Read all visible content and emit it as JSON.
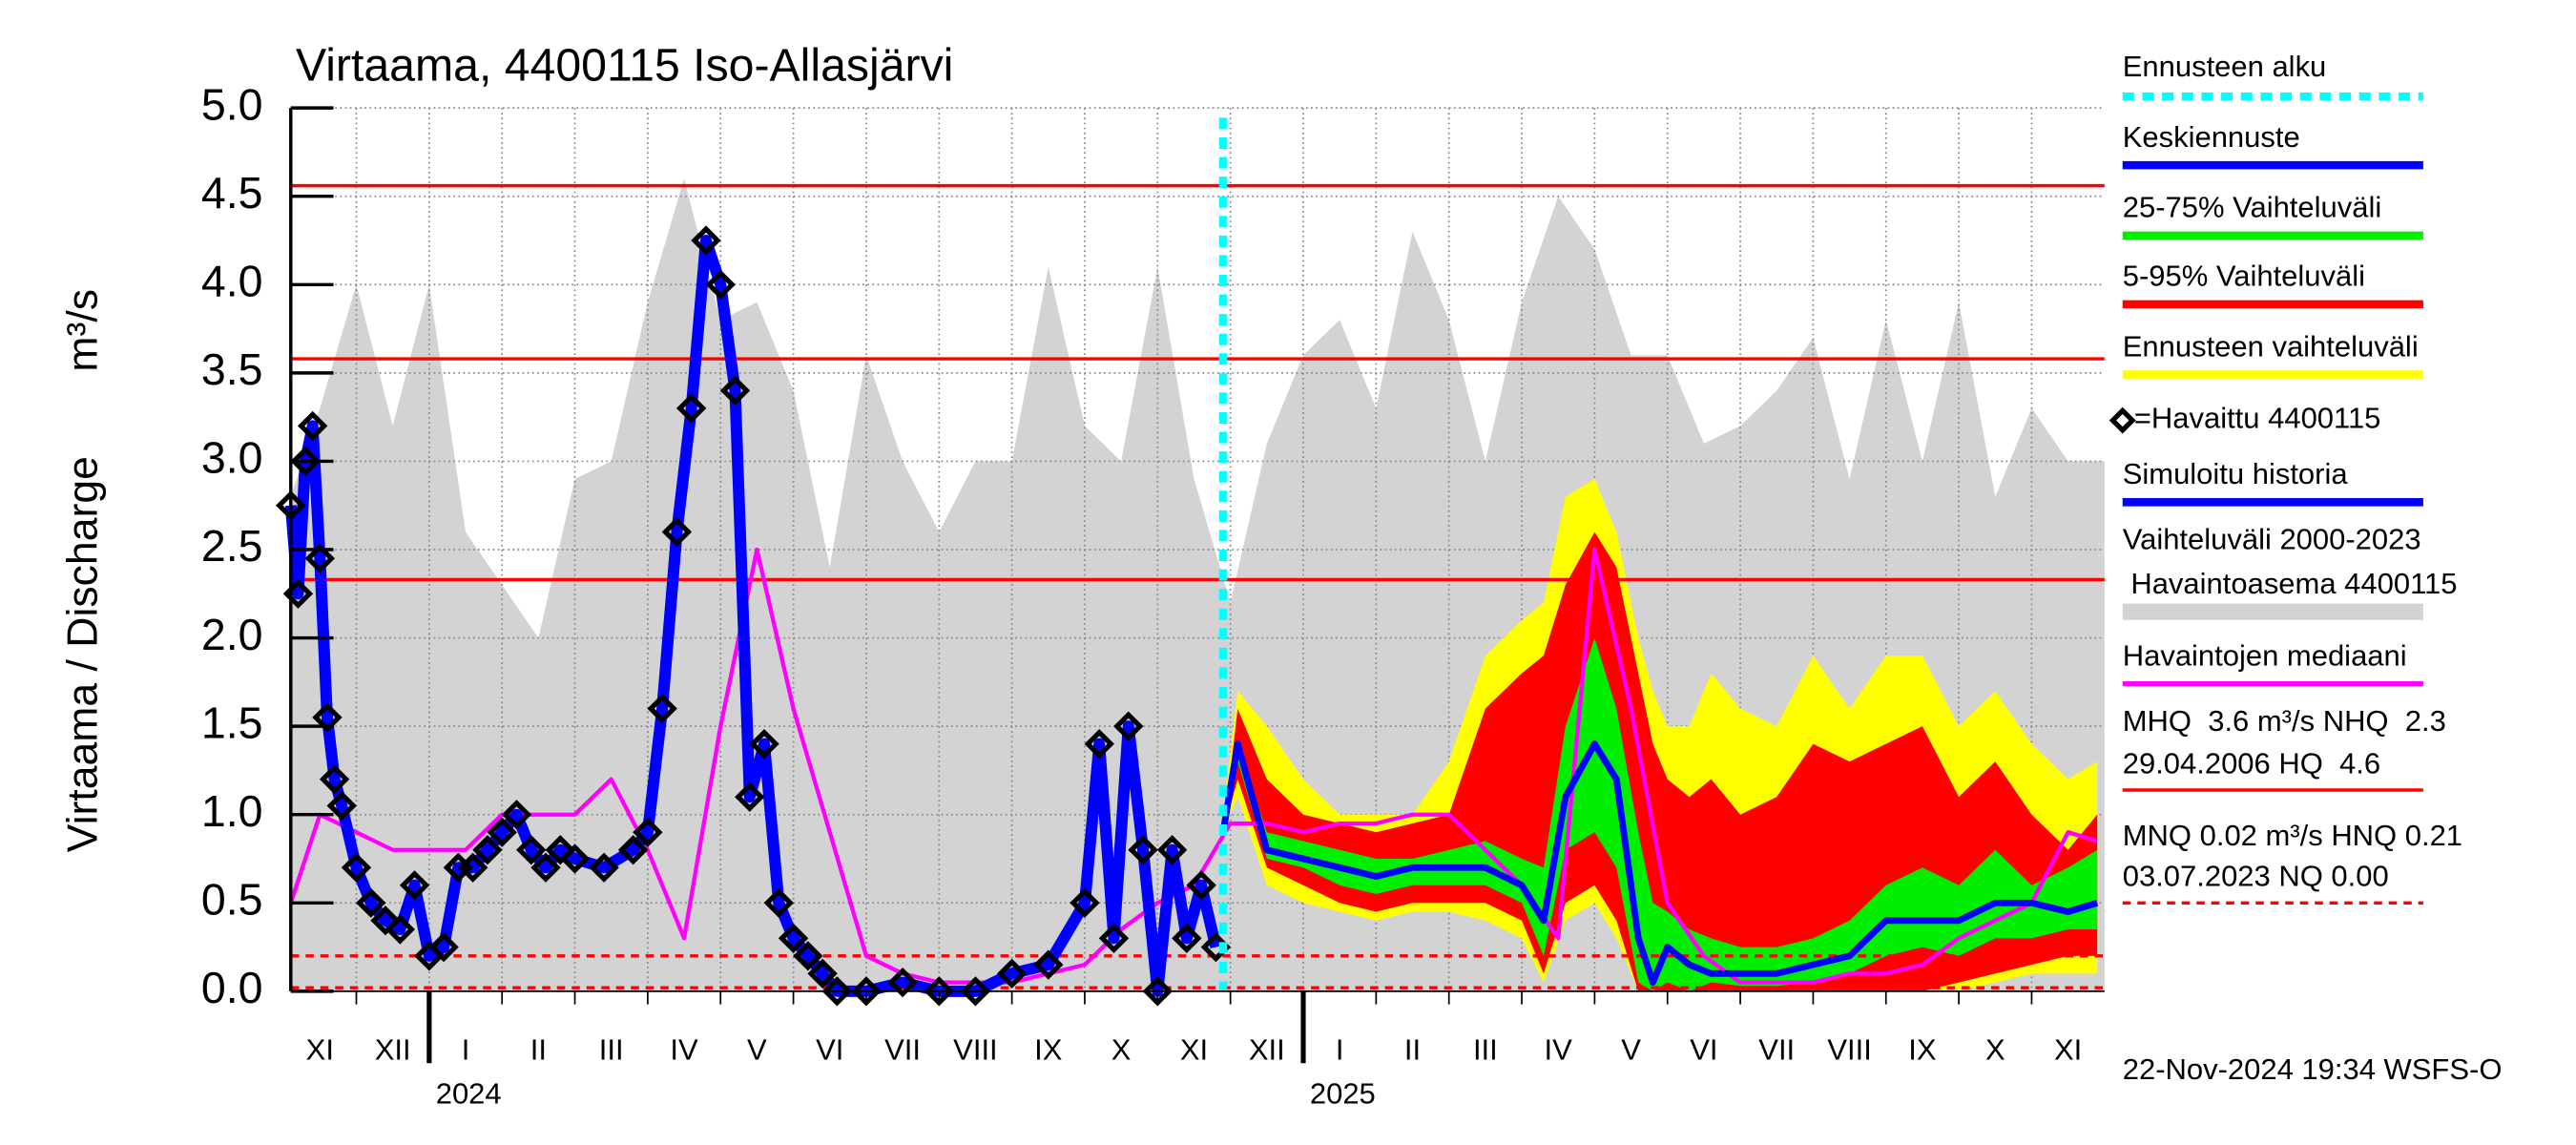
{
  "chart_data": {
    "type": "line",
    "title": "Virtaama, 4400115 Iso-Allasjärvi",
    "y_label": "Virtaama / Discharge",
    "y_unit": "m³/s",
    "ylim": [
      0,
      5
    ],
    "yticks": [
      {
        "value": 0,
        "label": "0.0"
      },
      0.5,
      {
        "value": 1,
        "label": "1.0"
      },
      1.5,
      {
        "value": 2,
        "label": "2.0"
      },
      2.5,
      {
        "value": 3,
        "label": "3.0"
      },
      3.5,
      {
        "value": 4,
        "label": "4.0"
      },
      4.5,
      {
        "value": 5,
        "label": "5.0"
      }
    ],
    "xlim": [
      0.1,
      25
    ],
    "xticks": [
      1,
      2,
      3,
      4,
      5,
      6,
      7,
      8,
      9,
      10,
      11,
      12,
      13,
      14,
      15,
      16,
      17,
      18,
      19,
      20,
      21,
      22,
      23,
      24
    ],
    "categories": [
      "XI",
      "XII",
      "I",
      "II",
      "III",
      "IV",
      "V",
      "VI",
      "VII",
      "VIII",
      "IX",
      "X",
      "XI",
      "XII",
      "I",
      "II",
      "III",
      "IV",
      "V",
      "VI",
      "VII",
      "VIII",
      "IX",
      "X",
      "XI"
    ],
    "year_labels": [
      "2024",
      "2025"
    ],
    "grid": true,
    "forecast_start": {
      "name": "Ennusteen alku",
      "x": 12.9,
      "color": "#00ffff"
    },
    "series": [
      {
        "name": "Vaihteluväli 2000-2023",
        "subname": " Havaintoasema 4400115",
        "kind": "area",
        "color": "#d3d3d3",
        "x": [
          0.1,
          0.5,
          1,
          1.5,
          2,
          2.5,
          3,
          3.5,
          4,
          4.5,
          5,
          5.5,
          6,
          6.5,
          7,
          7.5,
          8,
          8.5,
          9,
          9.5,
          10,
          10.5,
          11,
          11.5,
          12,
          12.5,
          13,
          13.5,
          14,
          14.5,
          15,
          15.5,
          16,
          16.5,
          17,
          17.5,
          18,
          18.5,
          19,
          19.5,
          20,
          20.5,
          21,
          21.5,
          22,
          22.5,
          23,
          23.5,
          24,
          24.5,
          25
        ],
        "values": [
          2.8,
          3.3,
          4.0,
          3.2,
          4.0,
          2.6,
          2.3,
          2.0,
          2.9,
          3.0,
          3.9,
          4.6,
          3.8,
          3.9,
          3.4,
          2.4,
          3.6,
          3.0,
          2.6,
          3.0,
          3.0,
          4.1,
          3.2,
          3.0,
          4.1,
          2.9,
          2.2,
          3.1,
          3.6,
          3.8,
          3.3,
          4.3,
          3.8,
          3.0,
          3.9,
          4.5,
          4.2,
          3.6,
          3.6,
          3.1,
          3.2,
          3.4,
          3.7,
          2.9,
          3.8,
          3.0,
          3.9,
          2.8,
          3.3,
          3.0,
          3.0
        ]
      },
      {
        "name": "Ennusteen vaihteluväli",
        "kind": "band",
        "color": "#ffff00",
        "x": [
          12.9,
          13.1,
          13.5,
          14,
          14.5,
          15,
          15.5,
          16,
          16.5,
          17,
          17.3,
          17.6,
          18,
          18.3,
          18.6,
          18.8,
          19,
          19.3,
          19.6,
          20,
          20.5,
          21,
          21.5,
          22,
          22.5,
          23,
          23.5,
          24,
          24.5,
          24.9
        ],
        "values": [
          1.0,
          1.7,
          1.5,
          1.2,
          1.0,
          1.0,
          1.0,
          1.3,
          1.9,
          2.1,
          2.2,
          2.8,
          2.9,
          2.6,
          2.0,
          1.7,
          1.5,
          1.5,
          1.8,
          1.6,
          1.5,
          1.9,
          1.6,
          1.9,
          1.9,
          1.5,
          1.7,
          1.4,
          1.2,
          1.3
        ],
        "lower": [
          0.9,
          1.1,
          0.6,
          0.5,
          0.45,
          0.4,
          0.45,
          0.45,
          0.4,
          0.3,
          0.05,
          0.4,
          0.5,
          0.3,
          0,
          0,
          0,
          0,
          0,
          0,
          0,
          0,
          0,
          0,
          0,
          0,
          0.05,
          0.1,
          0.1,
          0.1
        ]
      },
      {
        "name": "5-95% Vaihteluväli",
        "kind": "band",
        "color": "#ff0000",
        "x": [
          12.9,
          13.1,
          13.5,
          14,
          14.5,
          15,
          15.5,
          16,
          16.5,
          17,
          17.3,
          17.6,
          18,
          18.3,
          18.6,
          18.8,
          19,
          19.3,
          19.6,
          20,
          20.5,
          21,
          21.5,
          22,
          22.5,
          23,
          23.5,
          24,
          24.5,
          24.9
        ],
        "values": [
          0.9,
          1.6,
          1.2,
          1.0,
          0.95,
          0.9,
          0.95,
          1.0,
          1.6,
          1.8,
          1.9,
          2.3,
          2.6,
          2.4,
          1.8,
          1.4,
          1.2,
          1.1,
          1.2,
          1.0,
          1.1,
          1.4,
          1.3,
          1.4,
          1.5,
          1.1,
          1.3,
          1.0,
          0.8,
          1.0
        ],
        "lower": [
          0.9,
          1.2,
          0.7,
          0.6,
          0.5,
          0.45,
          0.5,
          0.5,
          0.5,
          0.4,
          0.1,
          0.5,
          0.6,
          0.4,
          0,
          0,
          0,
          0,
          0,
          0,
          0,
          0,
          0,
          0,
          0,
          0.05,
          0.1,
          0.15,
          0.2,
          0.2
        ]
      },
      {
        "name": "25-75% Vaihteluväli",
        "kind": "band",
        "color": "#00ee00",
        "x": [
          12.9,
          13.1,
          13.5,
          14,
          14.5,
          15,
          15.5,
          16,
          16.5,
          17,
          17.3,
          17.6,
          18,
          18.3,
          18.6,
          18.8,
          19,
          19.3,
          19.6,
          20,
          20.5,
          21,
          21.5,
          22,
          22.5,
          23,
          23.5,
          24,
          24.5,
          24.9
        ],
        "values": [
          0.9,
          1.4,
          0.9,
          0.85,
          0.8,
          0.75,
          0.75,
          0.8,
          0.85,
          0.75,
          0.7,
          1.5,
          2.0,
          1.6,
          0.9,
          0.5,
          0.45,
          0.35,
          0.3,
          0.25,
          0.25,
          0.3,
          0.4,
          0.6,
          0.7,
          0.6,
          0.8,
          0.6,
          0.7,
          0.8
        ],
        "lower": [
          0.9,
          1.3,
          0.75,
          0.7,
          0.6,
          0.55,
          0.6,
          0.6,
          0.6,
          0.5,
          0.2,
          0.8,
          0.9,
          0.7,
          0.05,
          0,
          0.05,
          0,
          0.05,
          0.03,
          0.03,
          0.05,
          0.1,
          0.2,
          0.25,
          0.2,
          0.3,
          0.3,
          0.35,
          0.35
        ]
      },
      {
        "name": "Keskiennuste",
        "kind": "line",
        "color": "#0000ff",
        "width": 4,
        "x": [
          12.9,
          13.1,
          13.5,
          14,
          14.5,
          15,
          15.5,
          16,
          16.5,
          17,
          17.3,
          17.6,
          18,
          18.3,
          18.6,
          18.8,
          19,
          19.3,
          19.6,
          20,
          20.5,
          21,
          21.5,
          22,
          22.5,
          23,
          23.5,
          24,
          24.5,
          24.9
        ],
        "values": [
          0.9,
          1.4,
          0.8,
          0.75,
          0.7,
          0.65,
          0.7,
          0.7,
          0.7,
          0.6,
          0.4,
          1.1,
          1.4,
          1.2,
          0.3,
          0.05,
          0.25,
          0.15,
          0.1,
          0.1,
          0.1,
          0.15,
          0.2,
          0.4,
          0.4,
          0.4,
          0.5,
          0.5,
          0.45,
          0.5
        ]
      },
      {
        "name": "Havaintojen mediaani",
        "kind": "line",
        "color": "#ff00ff",
        "width": 2.5,
        "x": [
          0.1,
          0.5,
          1,
          1.5,
          2,
          2.5,
          3,
          3.5,
          4,
          4.5,
          5,
          5.5,
          6,
          6.5,
          7,
          7.5,
          8,
          8.5,
          9,
          9.5,
          10,
          10.5,
          11,
          11.5,
          12,
          12.5,
          13,
          13.5,
          14,
          14.5,
          15,
          15.5,
          16,
          16.5,
          17,
          17.5,
          18,
          18.5,
          19,
          19.5,
          20,
          20.5,
          21,
          21.5,
          22,
          22.5,
          23,
          23.5,
          24,
          24.5,
          24.9
        ],
        "values": [
          0.5,
          1.0,
          0.9,
          0.8,
          0.8,
          0.8,
          1.0,
          1.0,
          1.0,
          1.2,
          0.8,
          0.3,
          1.5,
          2.5,
          1.6,
          0.9,
          0.2,
          0.1,
          0.05,
          0.05,
          0.05,
          0.1,
          0.15,
          0.35,
          0.5,
          0.6,
          0.95,
          0.95,
          0.9,
          0.95,
          0.95,
          1.0,
          1.0,
          0.8,
          0.6,
          0.3,
          2.5,
          1.6,
          0.5,
          0.2,
          0.05,
          0.05,
          0.05,
          0.1,
          0.1,
          0.15,
          0.3,
          0.4,
          0.5,
          0.9,
          0.85
        ]
      },
      {
        "name": "Simuloitu historia",
        "kind": "line",
        "color": "#0000ff",
        "width": 7,
        "x": [
          0.1,
          0.2,
          0.3,
          0.4,
          0.5,
          0.6,
          0.7,
          0.8,
          1.0,
          1.2,
          1.4,
          1.6,
          1.8,
          2.0,
          2.2,
          2.4,
          2.6,
          2.8,
          3.0,
          3.2,
          3.4,
          3.6,
          3.8,
          4.0,
          4.4,
          4.8,
          5.0,
          5.2,
          5.4,
          5.6,
          5.8,
          6.0,
          6.2,
          6.4,
          6.6,
          6.8,
          7.0,
          7.2,
          7.4,
          7.6,
          8.0,
          8.5,
          9.0,
          9.5,
          10.0,
          10.5,
          11.0,
          11.2,
          11.4,
          11.6,
          11.8,
          12.0,
          12.2,
          12.4,
          12.6,
          12.8
        ],
        "values": [
          2.75,
          2.25,
          3.0,
          3.2,
          2.45,
          1.55,
          1.2,
          1.05,
          0.7,
          0.5,
          0.4,
          0.35,
          0.6,
          0.2,
          0.25,
          0.7,
          0.7,
          0.8,
          0.9,
          1.0,
          0.8,
          0.7,
          0.8,
          0.75,
          0.7,
          0.8,
          0.9,
          1.6,
          2.6,
          3.3,
          4.25,
          4.0,
          3.4,
          1.1,
          1.4,
          0.5,
          0.3,
          0.2,
          0.1,
          0.0,
          0.0,
          0.05,
          0.0,
          0.0,
          0.1,
          0.15,
          0.5,
          1.4,
          0.3,
          1.5,
          0.8,
          0.0,
          0.8,
          0.3,
          0.6,
          0.25
        ]
      },
      {
        "name": "=Havaittu 4400115",
        "kind": "marker",
        "color": "#000000",
        "x": [
          0.1,
          0.2,
          0.3,
          0.4,
          0.5,
          0.6,
          0.7,
          0.8,
          1.0,
          1.2,
          1.4,
          1.6,
          1.8,
          2.0,
          2.2,
          2.4,
          2.6,
          2.8,
          3.0,
          3.2,
          3.4,
          3.6,
          3.8,
          4.0,
          4.4,
          4.8,
          5.0,
          5.2,
          5.4,
          5.6,
          5.8,
          6.0,
          6.2,
          6.4,
          6.6,
          6.8,
          7.0,
          7.2,
          7.4,
          7.6,
          8.0,
          8.5,
          9.0,
          9.5,
          10.0,
          10.5,
          11.0,
          11.2,
          11.4,
          11.6,
          11.8,
          12.0,
          12.2,
          12.4,
          12.6,
          12.8
        ],
        "values": [
          2.75,
          2.25,
          3.0,
          3.2,
          2.45,
          1.55,
          1.2,
          1.05,
          0.7,
          0.5,
          0.4,
          0.35,
          0.6,
          0.2,
          0.25,
          0.7,
          0.7,
          0.8,
          0.9,
          1.0,
          0.8,
          0.7,
          0.8,
          0.75,
          0.7,
          0.8,
          0.9,
          1.6,
          2.6,
          3.3,
          4.25,
          4.0,
          3.4,
          1.1,
          1.4,
          0.5,
          0.3,
          0.2,
          0.1,
          0.0,
          0.0,
          0.05,
          0.0,
          0.0,
          0.1,
          0.15,
          0.5,
          1.4,
          0.3,
          1.5,
          0.8,
          0.0,
          0.8,
          0.3,
          0.6,
          0.25
        ]
      }
    ],
    "hlines": [
      {
        "value": 4.56,
        "color": "#ff0000",
        "style": "solid"
      },
      {
        "value": 3.58,
        "color": "#ff0000",
        "style": "solid"
      },
      {
        "value": 2.33,
        "color": "#ff0000",
        "style": "solid"
      },
      {
        "value": 0.2,
        "color": "#ff0000",
        "style": "dashed"
      },
      {
        "value": 0.02,
        "color": "#ff0000",
        "style": "dashed"
      }
    ],
    "stats": [
      "MHQ  3.6 m³/s NHQ  2.3",
      "29.04.2006 HQ  4.6",
      "MNQ 0.02 m³/s HNQ 0.21",
      "03.07.2023 NQ 0.00"
    ],
    "footer": "22-Nov-2024 19:34 WSFS-O"
  }
}
